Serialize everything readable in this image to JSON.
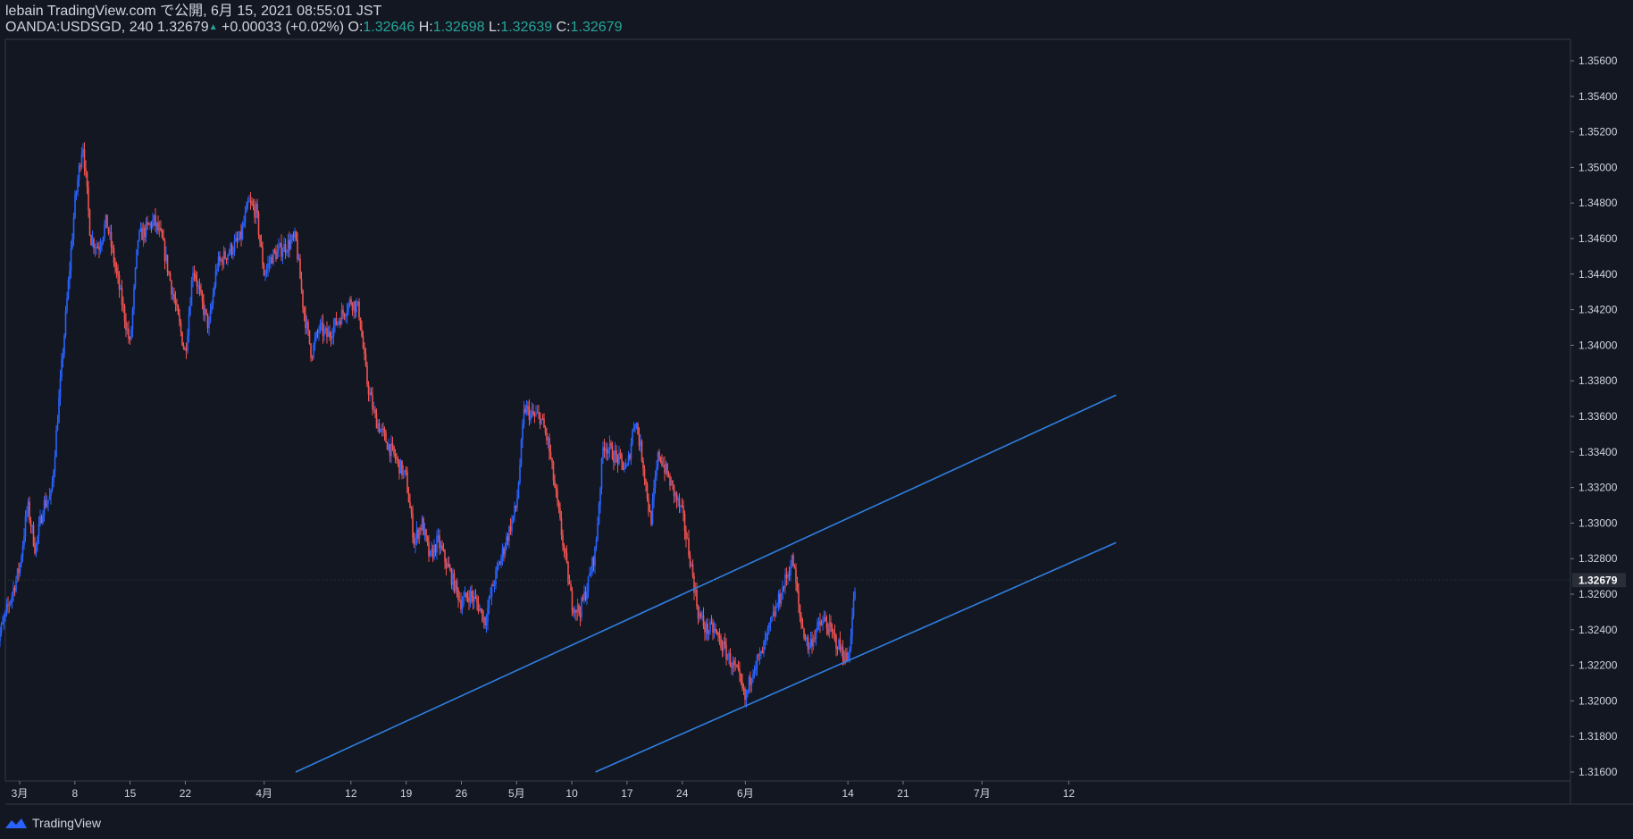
{
  "header": {
    "publish_line": "lebain TradingView.com で公開, 6月 15, 2021 08:55:01 JST",
    "symbol": "OANDA:USDSGD, 240",
    "last_price": "1.32679",
    "change": "+0.00033 (+0.02%)",
    "open_label": "O:",
    "open": "1.32646",
    "high_label": "H:",
    "high": "1.32698",
    "low_label": "L:",
    "low": "1.32639",
    "close_label": "C:",
    "close": "1.32679"
  },
  "footer": {
    "brand": "TradingView",
    "logo_icon": "tradingview-logo-icon"
  },
  "colors": {
    "background": "#131722",
    "up": "#2962ff",
    "down": "#ef5350",
    "trendline": "#2f7fe0",
    "axis_text": "#d1d4dc",
    "price_tag": "#2a2e39"
  },
  "chart_data": {
    "type": "candlestick",
    "symbol": "OANDA:USDSGD",
    "interval": "240",
    "ylim": [
      1.3155,
      1.357
    ],
    "y_ticks": [
      "1.35600",
      "1.35400",
      "1.35200",
      "1.35000",
      "1.34800",
      "1.34600",
      "1.34400",
      "1.34200",
      "1.34000",
      "1.33800",
      "1.33600",
      "1.33400",
      "1.33200",
      "1.33000",
      "1.32800",
      "1.32600",
      "1.32400",
      "1.32200",
      "1.32000",
      "1.31800",
      "1.31600"
    ],
    "last_price_tag": "1.32679",
    "x_ticks": [
      {
        "label": "3月",
        "date": "2021-03-01"
      },
      {
        "label": "8",
        "date": "2021-03-08"
      },
      {
        "label": "15",
        "date": "2021-03-15"
      },
      {
        "label": "22",
        "date": "2021-03-22"
      },
      {
        "label": "4月",
        "date": "2021-04-01"
      },
      {
        "label": "12",
        "date": "2021-04-12"
      },
      {
        "label": "19",
        "date": "2021-04-19"
      },
      {
        "label": "26",
        "date": "2021-04-26"
      },
      {
        "label": "5月",
        "date": "2021-05-03"
      },
      {
        "label": "10",
        "date": "2021-05-10"
      },
      {
        "label": "17",
        "date": "2021-05-17"
      },
      {
        "label": "24",
        "date": "2021-05-24"
      },
      {
        "label": "6月",
        "date": "2021-06-01"
      },
      {
        "label": "14",
        "date": "2021-06-14"
      },
      {
        "label": "21",
        "date": "2021-06-21"
      },
      {
        "label": "7月",
        "date": "2021-07-01"
      },
      {
        "label": "12",
        "date": "2021-07-12"
      }
    ],
    "close_path": [
      [
        "2021-02-26",
        1.323
      ],
      [
        "2021-03-01",
        1.3275
      ],
      [
        "2021-03-02",
        1.331
      ],
      [
        "2021-03-03",
        1.3285
      ],
      [
        "2021-03-04",
        1.331
      ],
      [
        "2021-03-05",
        1.3315
      ],
      [
        "2021-03-08",
        1.348
      ],
      [
        "2021-03-09",
        1.3515
      ],
      [
        "2021-03-10",
        1.346
      ],
      [
        "2021-03-11",
        1.3455
      ],
      [
        "2021-03-12",
        1.347
      ],
      [
        "2021-03-15",
        1.34
      ],
      [
        "2021-03-16",
        1.346
      ],
      [
        "2021-03-17",
        1.3465
      ],
      [
        "2021-03-18",
        1.347
      ],
      [
        "2021-03-19",
        1.346
      ],
      [
        "2021-03-22",
        1.3395
      ],
      [
        "2021-03-23",
        1.3445
      ],
      [
        "2021-03-24",
        1.3425
      ],
      [
        "2021-03-25",
        1.341
      ],
      [
        "2021-03-26",
        1.3445
      ],
      [
        "2021-03-29",
        1.346
      ],
      [
        "2021-03-30",
        1.348
      ],
      [
        "2021-03-31",
        1.3475
      ],
      [
        "2021-04-01",
        1.344
      ],
      [
        "2021-04-02",
        1.345
      ],
      [
        "2021-04-05",
        1.346
      ],
      [
        "2021-04-06",
        1.342
      ],
      [
        "2021-04-07",
        1.3395
      ],
      [
        "2021-04-08",
        1.341
      ],
      [
        "2021-04-09",
        1.3405
      ],
      [
        "2021-04-12",
        1.3425
      ],
      [
        "2021-04-13",
        1.342
      ],
      [
        "2021-04-14",
        1.338
      ],
      [
        "2021-04-15",
        1.336
      ],
      [
        "2021-04-16",
        1.335
      ],
      [
        "2021-04-19",
        1.3325
      ],
      [
        "2021-04-20",
        1.329
      ],
      [
        "2021-04-21",
        1.33
      ],
      [
        "2021-04-22",
        1.328
      ],
      [
        "2021-04-23",
        1.329
      ],
      [
        "2021-04-26",
        1.3255
      ],
      [
        "2021-04-27",
        1.326
      ],
      [
        "2021-04-28",
        1.3255
      ],
      [
        "2021-04-29",
        1.3245
      ],
      [
        "2021-04-30",
        1.3265
      ],
      [
        "2021-05-03",
        1.331
      ],
      [
        "2021-05-04",
        1.3365
      ],
      [
        "2021-05-05",
        1.336
      ],
      [
        "2021-05-06",
        1.336
      ],
      [
        "2021-05-07",
        1.3345
      ],
      [
        "2021-05-10",
        1.3255
      ],
      [
        "2021-05-11",
        1.325
      ],
      [
        "2021-05-12",
        1.3265
      ],
      [
        "2021-05-13",
        1.3285
      ],
      [
        "2021-05-14",
        1.3345
      ],
      [
        "2021-05-17",
        1.333
      ],
      [
        "2021-05-18",
        1.336
      ],
      [
        "2021-05-19",
        1.3335
      ],
      [
        "2021-05-20",
        1.33
      ],
      [
        "2021-05-21",
        1.334
      ],
      [
        "2021-05-24",
        1.3305
      ],
      [
        "2021-05-25",
        1.328
      ],
      [
        "2021-05-26",
        1.325
      ],
      [
        "2021-05-27",
        1.324
      ],
      [
        "2021-05-28",
        1.324
      ],
      [
        "2021-05-31",
        1.3215
      ],
      [
        "2021-06-01",
        1.32
      ],
      [
        "2021-06-02",
        1.322
      ],
      [
        "2021-06-03",
        1.3225
      ],
      [
        "2021-06-04",
        1.324
      ],
      [
        "2021-06-07",
        1.328
      ],
      [
        "2021-06-08",
        1.3245
      ],
      [
        "2021-06-09",
        1.323
      ],
      [
        "2021-06-10",
        1.324
      ],
      [
        "2021-06-11",
        1.3245
      ],
      [
        "2021-06-14",
        1.3222
      ],
      [
        "2021-06-15",
        1.3268
      ]
    ],
    "trendlines": [
      {
        "points": [
          [
            "2021-04-05",
            1.316
          ],
          [
            "2021-07-18",
            1.3372
          ]
        ]
      },
      {
        "points": [
          [
            "2021-05-13",
            1.316
          ],
          [
            "2021-07-18",
            1.3289
          ]
        ]
      }
    ]
  }
}
